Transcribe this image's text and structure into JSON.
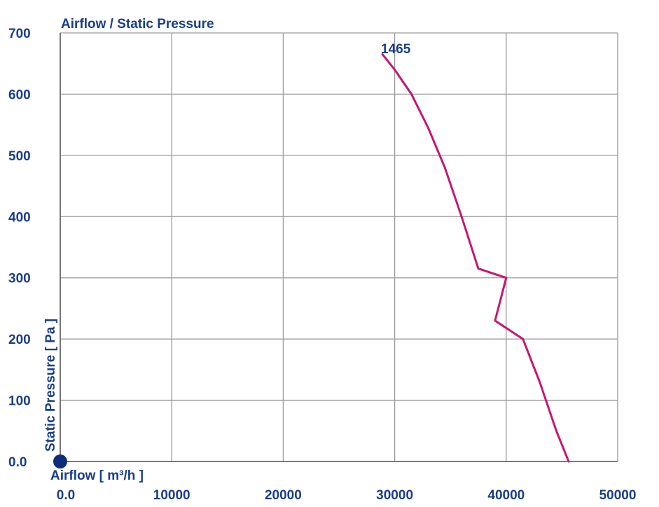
{
  "colors": {
    "text": "#1a3e8c",
    "grid": "#9a9a9a",
    "curve": "#c8166e",
    "origin_marker": "#0d2d7a"
  },
  "chart_data": {
    "type": "line",
    "title": "Airflow / Static Pressure",
    "xlabel": "Airflow [ m³/h ]",
    "ylabel": "Static Pressure [ Pa ]",
    "xlim": [
      0,
      50000
    ],
    "ylim": [
      0,
      700
    ],
    "xticks": [
      "0.0",
      "10000",
      "20000",
      "30000",
      "40000",
      "50000"
    ],
    "yticks": [
      "0.0",
      "100",
      "200",
      "300",
      "400",
      "500",
      "600",
      "700"
    ],
    "grid": true,
    "series": [
      {
        "name": "1465",
        "color": "#c8166e",
        "x": [
          28900,
          30000,
          31500,
          33000,
          34500,
          36000,
          37500,
          39000,
          40000,
          41500,
          43000,
          44500,
          45600
        ],
        "y": [
          665,
          640,
          600,
          545,
          480,
          400,
          315,
          230,
          300,
          200,
          130,
          50,
          0
        ]
      }
    ]
  }
}
